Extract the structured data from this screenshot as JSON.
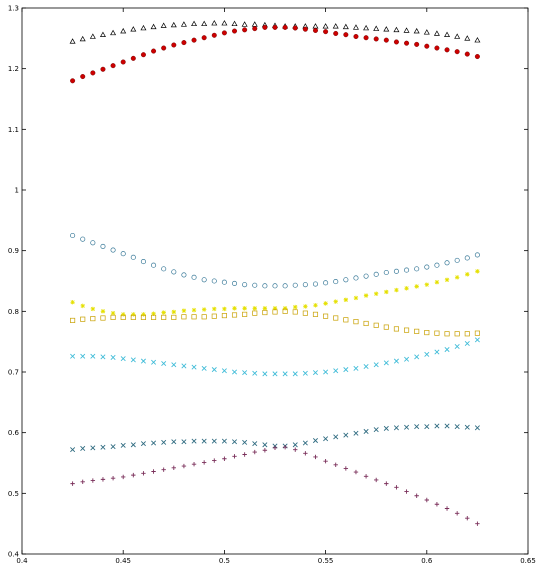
{
  "chart_data": {
    "type": "scatter",
    "title": "",
    "xlabel": "",
    "ylabel": "",
    "xlim": [
      0.4,
      0.65
    ],
    "ylim": [
      0.4,
      1.3
    ],
    "xticks": [
      "0.4",
      "0.45",
      "0.5",
      "0.55",
      "0.6",
      "0.65"
    ],
    "yticks": [
      "0.4",
      "0.5",
      "0.6",
      "0.7",
      "0.8",
      "0.9",
      "1",
      "1.1",
      "1.2",
      "1.3"
    ],
    "grid": false,
    "x": [
      0.425,
      0.43,
      0.435,
      0.44,
      0.445,
      0.45,
      0.455,
      0.46,
      0.465,
      0.47,
      0.475,
      0.48,
      0.485,
      0.49,
      0.495,
      0.5,
      0.505,
      0.51,
      0.515,
      0.52,
      0.525,
      0.53,
      0.535,
      0.54,
      0.545,
      0.55,
      0.555,
      0.56,
      0.565,
      0.57,
      0.575,
      0.58,
      0.585,
      0.59,
      0.595,
      0.6,
      0.605,
      0.61,
      0.615,
      0.62,
      0.625
    ],
    "series": [
      {
        "marker": "triangle",
        "color": "#000000",
        "values": [
          1.245,
          1.249,
          1.253,
          1.256,
          1.259,
          1.262,
          1.265,
          1.267,
          1.269,
          1.271,
          1.272,
          1.273,
          1.274,
          1.274,
          1.275,
          1.275,
          1.274,
          1.273,
          1.273,
          1.272,
          1.271,
          1.27,
          1.27,
          1.27,
          1.27,
          1.27,
          1.27,
          1.269,
          1.268,
          1.267,
          1.266,
          1.265,
          1.264,
          1.263,
          1.262,
          1.26,
          1.258,
          1.256,
          1.253,
          1.25,
          1.247
        ]
      },
      {
        "marker": "circle-filled",
        "color": "#cc0000",
        "values": [
          1.18,
          1.187,
          1.193,
          1.199,
          1.205,
          1.211,
          1.217,
          1.223,
          1.229,
          1.234,
          1.239,
          1.243,
          1.247,
          1.251,
          1.255,
          1.259,
          1.262,
          1.264,
          1.266,
          1.268,
          1.268,
          1.268,
          1.267,
          1.265,
          1.263,
          1.261,
          1.258,
          1.256,
          1.253,
          1.251,
          1.249,
          1.247,
          1.244,
          1.242,
          1.24,
          1.237,
          1.234,
          1.231,
          1.228,
          1.224,
          1.22
        ]
      },
      {
        "marker": "circle-open",
        "color": "#3a7a99",
        "values": [
          0.925,
          0.919,
          0.913,
          0.907,
          0.901,
          0.895,
          0.889,
          0.882,
          0.876,
          0.87,
          0.865,
          0.86,
          0.856,
          0.852,
          0.85,
          0.848,
          0.846,
          0.844,
          0.843,
          0.842,
          0.842,
          0.842,
          0.843,
          0.844,
          0.845,
          0.847,
          0.849,
          0.852,
          0.855,
          0.858,
          0.861,
          0.864,
          0.866,
          0.868,
          0.87,
          0.873,
          0.876,
          0.88,
          0.884,
          0.888,
          0.893
        ]
      },
      {
        "marker": "star",
        "color": "#e5e000",
        "values": [
          0.815,
          0.809,
          0.804,
          0.8,
          0.797,
          0.795,
          0.795,
          0.795,
          0.796,
          0.798,
          0.799,
          0.801,
          0.802,
          0.803,
          0.804,
          0.804,
          0.805,
          0.805,
          0.805,
          0.805,
          0.805,
          0.805,
          0.807,
          0.808,
          0.81,
          0.813,
          0.816,
          0.819,
          0.822,
          0.826,
          0.829,
          0.832,
          0.835,
          0.838,
          0.841,
          0.844,
          0.848,
          0.852,
          0.856,
          0.861,
          0.866
        ]
      },
      {
        "marker": "square-open",
        "color": "#c8a000",
        "values": [
          0.785,
          0.787,
          0.788,
          0.789,
          0.79,
          0.79,
          0.79,
          0.79,
          0.79,
          0.79,
          0.79,
          0.791,
          0.791,
          0.791,
          0.792,
          0.793,
          0.794,
          0.795,
          0.797,
          0.798,
          0.799,
          0.8,
          0.799,
          0.797,
          0.795,
          0.792,
          0.789,
          0.786,
          0.783,
          0.78,
          0.777,
          0.774,
          0.771,
          0.769,
          0.767,
          0.765,
          0.764,
          0.763,
          0.763,
          0.763,
          0.764
        ]
      },
      {
        "marker": "x",
        "color": "#40bcd8",
        "values": [
          0.726,
          0.726,
          0.726,
          0.725,
          0.724,
          0.722,
          0.72,
          0.718,
          0.716,
          0.714,
          0.712,
          0.71,
          0.708,
          0.706,
          0.704,
          0.702,
          0.7,
          0.699,
          0.698,
          0.697,
          0.697,
          0.697,
          0.697,
          0.698,
          0.699,
          0.7,
          0.702,
          0.704,
          0.706,
          0.709,
          0.712,
          0.715,
          0.718,
          0.721,
          0.725,
          0.729,
          0.733,
          0.737,
          0.742,
          0.747,
          0.753
        ]
      },
      {
        "marker": "x",
        "color": "#2f6b80",
        "values": [
          0.572,
          0.574,
          0.575,
          0.576,
          0.577,
          0.579,
          0.58,
          0.582,
          0.583,
          0.584,
          0.585,
          0.585,
          0.586,
          0.586,
          0.586,
          0.586,
          0.585,
          0.584,
          0.582,
          0.58,
          0.578,
          0.578,
          0.58,
          0.583,
          0.587,
          0.59,
          0.593,
          0.596,
          0.599,
          0.602,
          0.605,
          0.607,
          0.608,
          0.609,
          0.61,
          0.61,
          0.611,
          0.611,
          0.61,
          0.609,
          0.608
        ]
      },
      {
        "marker": "plus",
        "color": "#7a2f5a",
        "values": [
          0.516,
          0.519,
          0.521,
          0.523,
          0.525,
          0.527,
          0.53,
          0.533,
          0.536,
          0.539,
          0.542,
          0.545,
          0.548,
          0.551,
          0.554,
          0.557,
          0.561,
          0.564,
          0.568,
          0.571,
          0.575,
          0.576,
          0.572,
          0.566,
          0.56,
          0.553,
          0.547,
          0.541,
          0.535,
          0.528,
          0.522,
          0.516,
          0.51,
          0.503,
          0.496,
          0.489,
          0.482,
          0.475,
          0.467,
          0.459,
          0.45
        ]
      }
    ]
  }
}
